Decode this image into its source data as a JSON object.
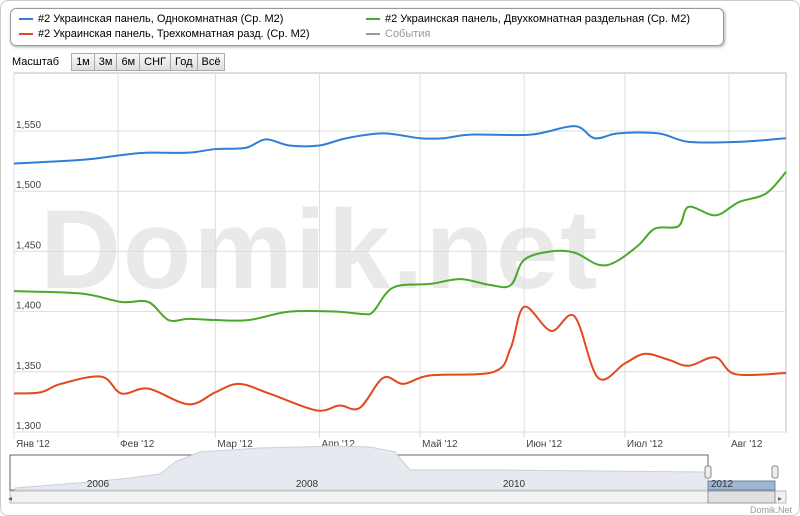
{
  "legend": [
    {
      "label": "#2 Украинская панель, Однокомнатная (Ср. М2)",
      "color": "#2f7ed8"
    },
    {
      "label": "#2 Украинская панель, Двухкомнатная раздельная (Ср. М2)",
      "color": "#4aa82a"
    },
    {
      "label": "#2 Украинская панель, Трехкомнатная разд. (Ср. М2)",
      "color": "#e2491c"
    },
    {
      "label": "События",
      "color": "#999999"
    }
  ],
  "zoom": {
    "label": "Масштаб",
    "buttons": [
      "1м",
      "3м",
      "6м",
      "СНГ",
      "Год",
      "Всё"
    ]
  },
  "watermark": "Domik.net",
  "credit": "Domik.Net",
  "chart_data": {
    "type": "line",
    "x_unit": "day of 2012",
    "xlim": [
      0,
      230
    ],
    "ylim": [
      1300,
      1600
    ],
    "yticks": [
      1300,
      1350,
      1400,
      1450,
      1500,
      1550
    ],
    "ytick_labels": [
      "1,300",
      "1,350",
      "1,400",
      "1,450",
      "1,500",
      "1,550"
    ],
    "xticks": [
      {
        "day": 0,
        "label": "Янв '12"
      },
      {
        "day": 31,
        "label": "Фев '12"
      },
      {
        "day": 60,
        "label": "Мар '12"
      },
      {
        "day": 91,
        "label": "Апр '12"
      },
      {
        "day": 121,
        "label": "Май '12"
      },
      {
        "day": 152,
        "label": "Июн '12"
      },
      {
        "day": 182,
        "label": "Июл '12"
      },
      {
        "day": 213,
        "label": "Авг '12"
      }
    ],
    "series": [
      {
        "name": "Однокомнатная",
        "color": "#2f7ed8",
        "points": [
          [
            0,
            1523
          ],
          [
            20,
            1526
          ],
          [
            32,
            1530
          ],
          [
            40,
            1532
          ],
          [
            52,
            1532
          ],
          [
            60,
            1535
          ],
          [
            69,
            1536
          ],
          [
            75,
            1543
          ],
          [
            82,
            1538
          ],
          [
            91,
            1538
          ],
          [
            99,
            1544
          ],
          [
            110,
            1548
          ],
          [
            121,
            1544
          ],
          [
            128,
            1544
          ],
          [
            136,
            1547
          ],
          [
            154,
            1547
          ],
          [
            167,
            1554
          ],
          [
            173,
            1544
          ],
          [
            180,
            1548
          ],
          [
            192,
            1548
          ],
          [
            201,
            1541
          ],
          [
            216,
            1541
          ],
          [
            230,
            1544
          ]
        ]
      },
      {
        "name": "Двухкомнатная раздельная",
        "color": "#4aa82a",
        "points": [
          [
            0,
            1417
          ],
          [
            20,
            1415
          ],
          [
            32,
            1408
          ],
          [
            40,
            1408
          ],
          [
            46,
            1393
          ],
          [
            52,
            1394
          ],
          [
            60,
            1393
          ],
          [
            70,
            1393
          ],
          [
            82,
            1400
          ],
          [
            96,
            1400
          ],
          [
            104,
            1398
          ],
          [
            107,
            1400
          ],
          [
            113,
            1420
          ],
          [
            124,
            1423
          ],
          [
            133,
            1427
          ],
          [
            142,
            1422
          ],
          [
            148,
            1422
          ],
          [
            152,
            1443
          ],
          [
            160,
            1450
          ],
          [
            167,
            1449
          ],
          [
            174,
            1439
          ],
          [
            179,
            1441
          ],
          [
            186,
            1455
          ],
          [
            191,
            1469
          ],
          [
            198,
            1471
          ],
          [
            201,
            1487
          ],
          [
            209,
            1480
          ],
          [
            216,
            1491
          ],
          [
            224,
            1498
          ],
          [
            230,
            1516
          ]
        ]
      },
      {
        "name": "Трехкомнатная разд.",
        "color": "#e2491c",
        "points": [
          [
            0,
            1332
          ],
          [
            8,
            1333
          ],
          [
            14,
            1340
          ],
          [
            26,
            1346
          ],
          [
            32,
            1332
          ],
          [
            40,
            1336
          ],
          [
            52,
            1323
          ],
          [
            60,
            1333
          ],
          [
            67,
            1340
          ],
          [
            76,
            1332
          ],
          [
            90,
            1318
          ],
          [
            97,
            1322
          ],
          [
            103,
            1320
          ],
          [
            110,
            1345
          ],
          [
            116,
            1340
          ],
          [
            124,
            1347
          ],
          [
            143,
            1350
          ],
          [
            148,
            1370
          ],
          [
            152,
            1404
          ],
          [
            160,
            1384
          ],
          [
            167,
            1396
          ],
          [
            174,
            1345
          ],
          [
            182,
            1357
          ],
          [
            188,
            1365
          ],
          [
            195,
            1360
          ],
          [
            201,
            1355
          ],
          [
            209,
            1362
          ],
          [
            215,
            1348
          ],
          [
            230,
            1349
          ]
        ]
      }
    ],
    "navigator": {
      "labels": [
        "2006",
        "2008",
        "2010",
        "2012"
      ]
    }
  }
}
